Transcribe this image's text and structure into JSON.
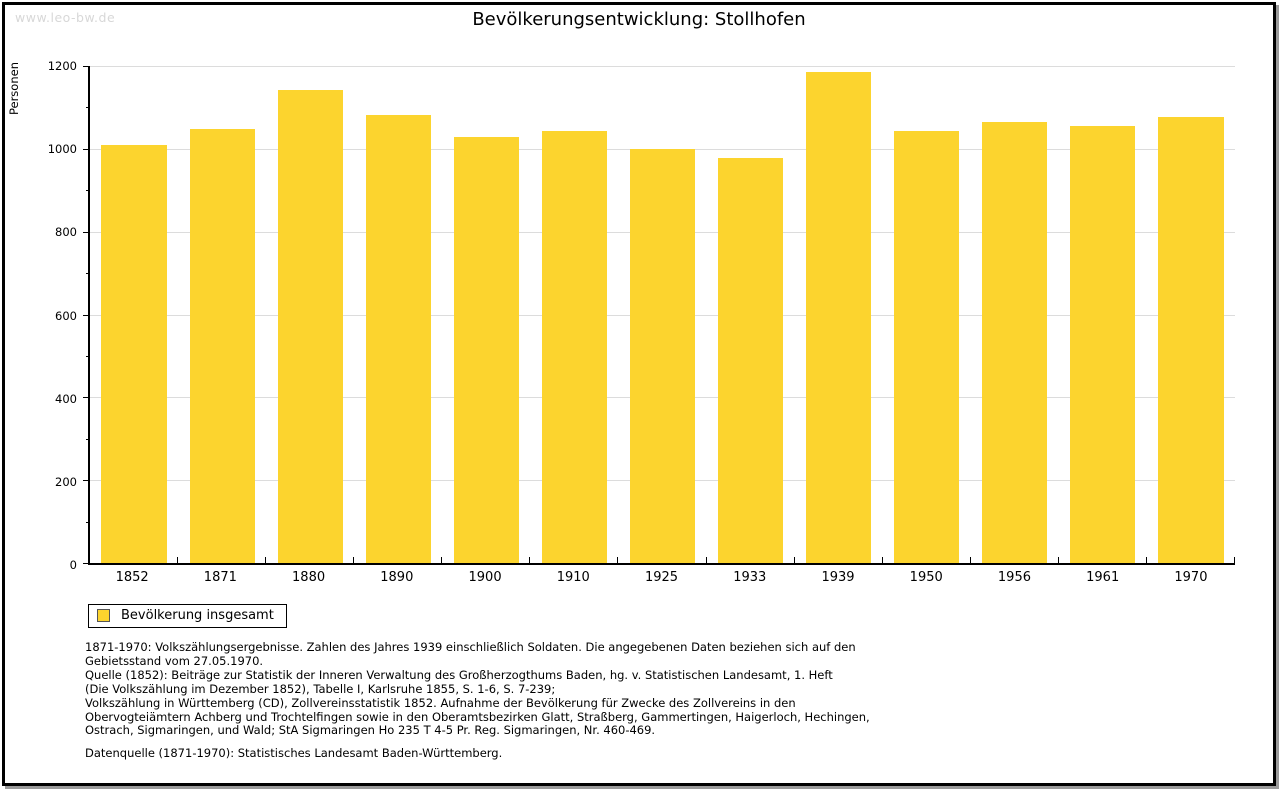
{
  "page": {
    "watermark": "www.leo-bw.de",
    "title": "Bevölkerungsentwicklung: Stollhofen"
  },
  "chart_data": {
    "type": "bar",
    "title": "Bevölkerungsentwicklung: Stollhofen",
    "xlabel": "",
    "ylabel": "Personen",
    "ylim": [
      0,
      1200
    ],
    "ytick_step": 200,
    "ytick_minor_step": 100,
    "grid": true,
    "legend_position": "bottom-left",
    "categories": [
      "1852",
      "1871",
      "1880",
      "1890",
      "1900",
      "1910",
      "1925",
      "1933",
      "1939",
      "1950",
      "1956",
      "1961",
      "1970"
    ],
    "series": [
      {
        "name": "Bevölkerung insgesamt",
        "values": [
          1010,
          1049,
          1142,
          1082,
          1028,
          1043,
          1000,
          978,
          1186,
          1042,
          1065,
          1054,
          1078
        ],
        "color": "#fcd42e"
      }
    ]
  },
  "legend": {
    "label": "Bevölkerung insgesamt",
    "swatch_color": "#fcd42e"
  },
  "footnote": {
    "lines": [
      "1871-1970: Volkszählungsergebnisse. Zahlen des Jahres 1939 einschließlich Soldaten. Die angegebenen Daten beziehen sich auf den",
      "Gebietsstand vom 27.05.1970.",
      "Quelle (1852): Beiträge zur Statistik der Inneren Verwaltung des Großherzogthums Baden, hg. v. Statistischen Landesamt, 1. Heft",
      "(Die Volkszählung im Dezember 1852), Tabelle I, Karlsruhe 1855, S. 1-6, S. 7-239;",
      "Volkszählung in Württemberg (CD), Zollvereinsstatistik 1852. Aufnahme der Bevölkerung für Zwecke des Zollvereins in den",
      "Obervogteiämtern Achberg und Trochtelfingen sowie in den Oberamtsbezirken Glatt, Straßberg, Gammertingen, Haigerloch, Hechingen,",
      "Ostrach, Sigmaringen, und Wald; StA Sigmaringen Ho 235 T 4-5 Pr. Reg. Sigmaringen, Nr. 460-469."
    ],
    "datasource": "Datenquelle (1871-1970): Statistisches Landesamt Baden-Württemberg."
  },
  "colors": {
    "bar": "#fcd42e",
    "grid": "#dcdcdc",
    "axis": "#000000",
    "watermark": "#d8d8d8"
  }
}
